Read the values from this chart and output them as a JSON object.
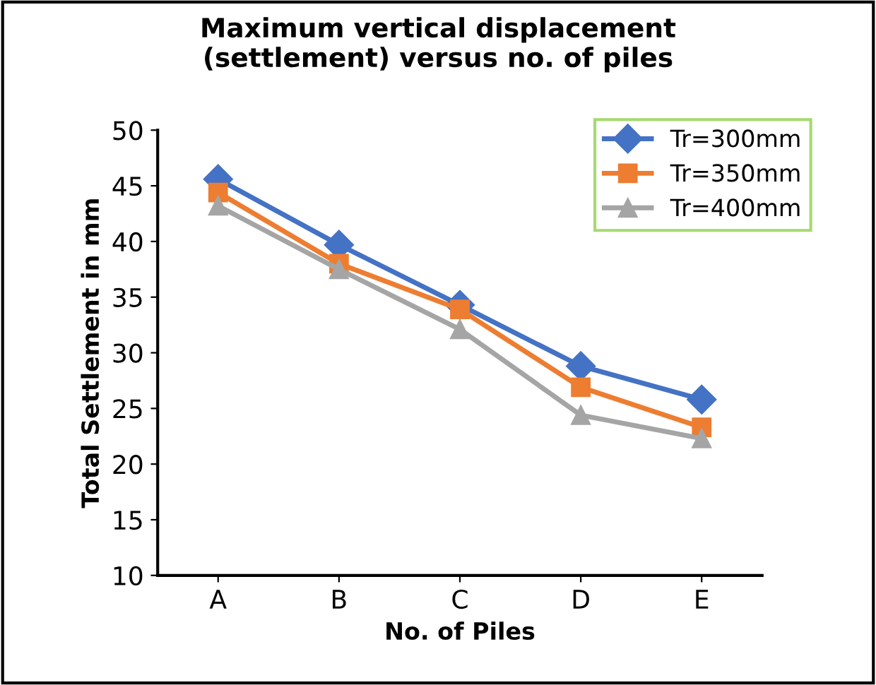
{
  "chart_data": {
    "type": "line",
    "title": "Maximum vertical displacement\n(settlement) versus no. of piles",
    "xlabel": "No. of Piles",
    "ylabel": "Total Settlement in mm",
    "categories": [
      "A",
      "B",
      "C",
      "D",
      "E"
    ],
    "series": [
      {
        "name": "Tr=300mm",
        "color": "#4472c4",
        "marker": "diamond",
        "values": [
          45.6,
          39.7,
          34.3,
          28.8,
          25.8
        ]
      },
      {
        "name": "Tr=350mm",
        "color": "#ed7d31",
        "marker": "square",
        "values": [
          44.4,
          38.0,
          33.9,
          26.9,
          23.3
        ]
      },
      {
        "name": "Tr=400mm",
        "color": "#a5a5a5",
        "marker": "triangle",
        "values": [
          43.2,
          37.5,
          32.1,
          24.4,
          22.3
        ]
      }
    ],
    "ylim": [
      10,
      50
    ],
    "yticks": [
      10,
      15,
      20,
      25,
      30,
      35,
      40,
      45,
      50
    ],
    "grid": false,
    "legend": "top right",
    "line_style": "solid"
  }
}
